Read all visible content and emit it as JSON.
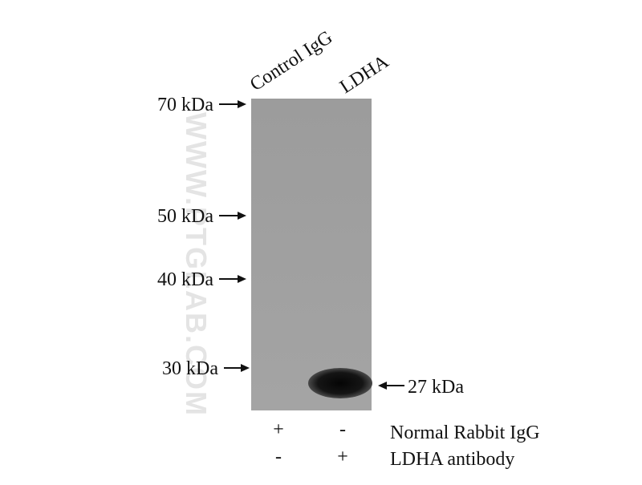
{
  "lanes": [
    "Control IgG",
    "LDHA"
  ],
  "markers": [
    "70 kDa",
    "50 kDa",
    "40 kDa",
    "30 kDa"
  ],
  "band_label": "27 kDa",
  "treatments": [
    {
      "name": "Normal Rabbit IgG",
      "signs": [
        "+",
        "-"
      ]
    },
    {
      "name": "LDHA antibody",
      "signs": [
        "-",
        "+"
      ]
    }
  ],
  "watermark": "WWW.PTGLAB.COM"
}
